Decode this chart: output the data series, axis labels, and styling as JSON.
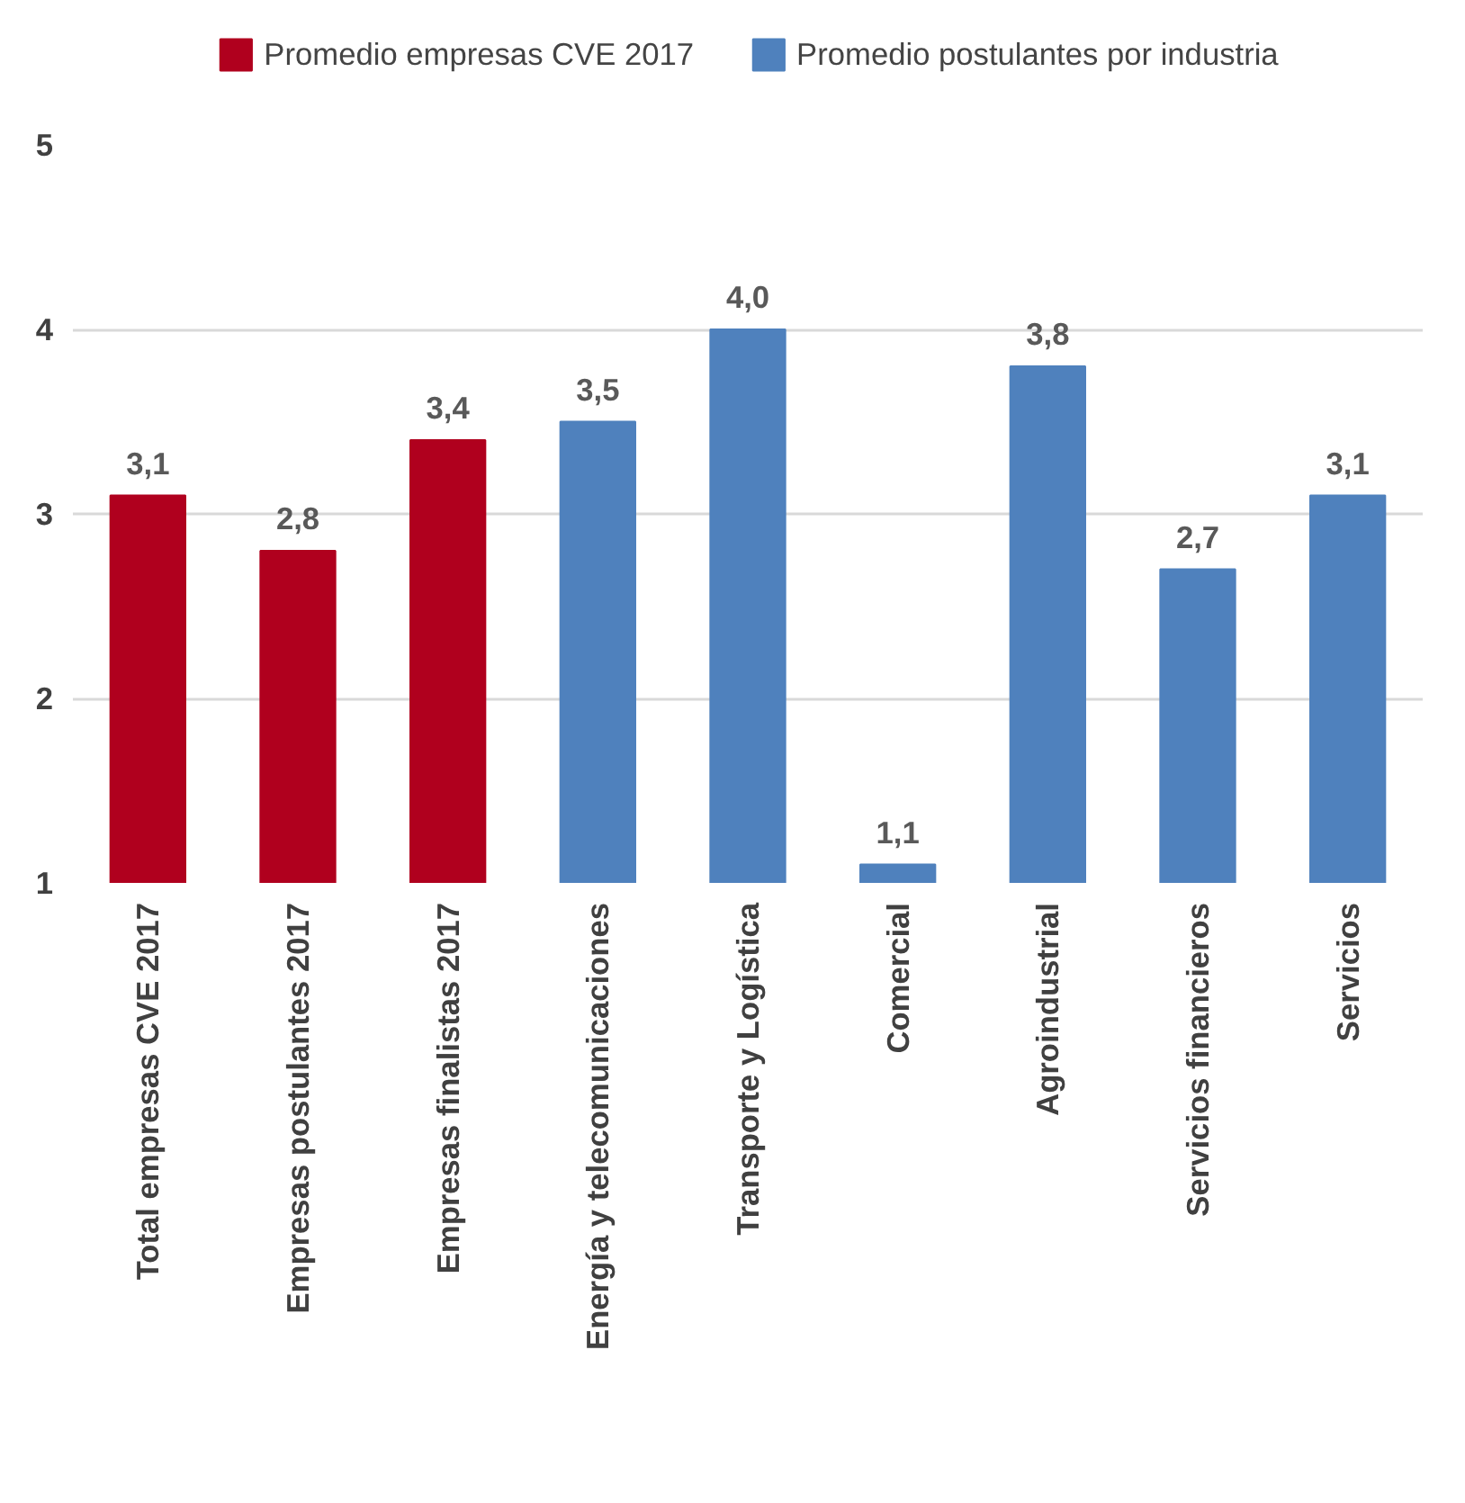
{
  "chart_data": {
    "type": "bar",
    "categories": [
      "Total empresas CVE 2017",
      "Empresas postulantes 2017",
      "Empresas finalistas 2017",
      "Energía y telecomunicaciones",
      "Transporte y Logística",
      "Comercial",
      "Agroindustrial",
      "Servicios financieros",
      "Servicios"
    ],
    "series": [
      {
        "name": "Promedio empresas CVE 2017",
        "color": "#b0001e",
        "values": [
          3.1,
          2.8,
          3.4,
          null,
          null,
          null,
          null,
          null,
          null
        ]
      },
      {
        "name": "Promedio postulantes por industria",
        "color": "#4f81bd",
        "values": [
          null,
          null,
          null,
          3.5,
          4.0,
          1.1,
          3.8,
          2.7,
          3.1
        ]
      }
    ],
    "ylim": [
      1,
      5
    ],
    "yticks": [
      1,
      2,
      3,
      4,
      5
    ],
    "grid": "y",
    "legend": "top",
    "value_labels": [
      "3,1",
      "2,8",
      "3,4",
      "3,5",
      "4,0",
      "1,1",
      "3,8",
      "2,7",
      "3,1"
    ]
  }
}
